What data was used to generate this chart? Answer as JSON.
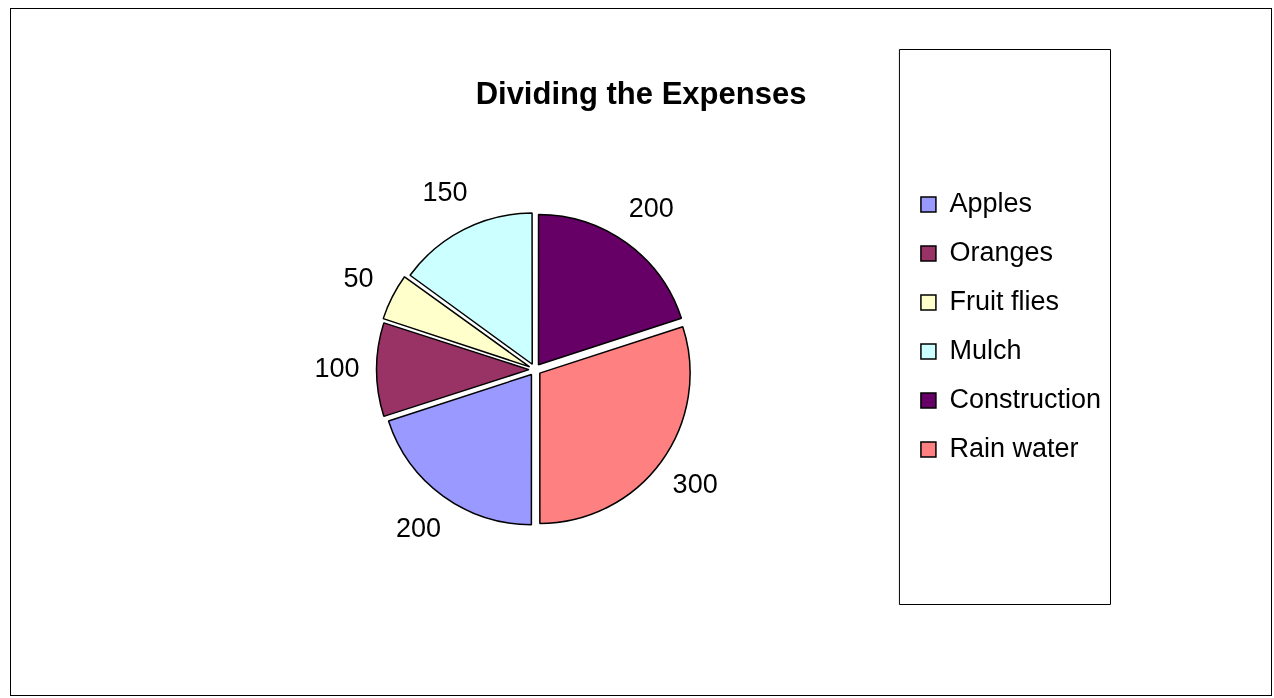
{
  "chart_data": {
    "type": "pie",
    "title": "Dividing the Expenses",
    "categories": [
      "Apples",
      "Oranges",
      "Fruit flies",
      "Mulch",
      "Construction",
      "Rain water"
    ],
    "values": [
      200,
      100,
      50,
      150,
      200,
      300
    ],
    "colors": [
      "#9999ff",
      "#993366",
      "#ffffcc",
      "#ccffff",
      "#660066",
      "#ff8080"
    ],
    "data_labels": true,
    "legend": "right"
  }
}
